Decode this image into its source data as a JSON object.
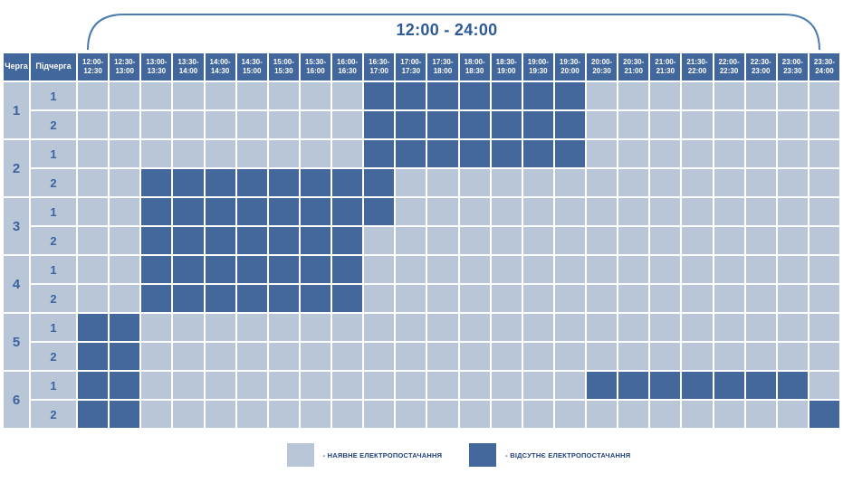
{
  "title": "12:00 - 24:00",
  "colors": {
    "on": "#b9c6d8",
    "off": "#44689b",
    "header_bg": "#42679c",
    "header_text": "#ffffff",
    "label_text": "#3a64a0",
    "title_text": "#2d5b97",
    "brace": "#4c7bb0",
    "legend_text": "#1f3f77"
  },
  "legend": [
    {
      "state": "on",
      "label": "- НАЯВНЕ ЕЛЕКТРОПОСТАЧАННЯ"
    },
    {
      "state": "off",
      "label": "- ВІДСУТНЄ ЕЛЕКТРОПОСТАЧАННЯ"
    }
  ],
  "chart_data": {
    "type": "heatmap",
    "title": "12:00 - 24:00",
    "corner_headers": [
      "Черга",
      "Підчерга"
    ],
    "time_slots": [
      "12:00-12:30",
      "12:30-13:00",
      "13:00-13:30",
      "13:30-14:00",
      "14:00-14:30",
      "14:30-15:00",
      "15:00-15:30",
      "15:30-16:00",
      "16:00-16:30",
      "16:30-17:00",
      "17:00-17:30",
      "17:30-18:00",
      "18:00-18:30",
      "18:30-19:00",
      "19:00-19:30",
      "19:30-20:00",
      "20:00-20:30",
      "20:30-21:00",
      "21:00-21:30",
      "21:30-22:00",
      "22:00-22:30",
      "22:30-23:00",
      "23:00-23:30",
      "23:30-24:00"
    ],
    "cell_states": {
      "on": "наявне електропостачання",
      "off": "відсутнє електропостачання"
    },
    "rows": [
      {
        "queue": "1",
        "subqueue": "1",
        "off": [
          9,
          10,
          11,
          12,
          13,
          14,
          15
        ]
      },
      {
        "queue": "1",
        "subqueue": "2",
        "off": [
          9,
          10,
          11,
          12,
          13,
          14,
          15
        ]
      },
      {
        "queue": "2",
        "subqueue": "1",
        "off": [
          9,
          10,
          11,
          12,
          13,
          14,
          15
        ]
      },
      {
        "queue": "2",
        "subqueue": "2",
        "off": [
          2,
          3,
          4,
          5,
          6,
          7,
          8,
          9
        ]
      },
      {
        "queue": "3",
        "subqueue": "1",
        "off": [
          2,
          3,
          4,
          5,
          6,
          7,
          8,
          9
        ]
      },
      {
        "queue": "3",
        "subqueue": "2",
        "off": [
          2,
          3,
          4,
          5,
          6,
          7,
          8
        ]
      },
      {
        "queue": "4",
        "subqueue": "1",
        "off": [
          2,
          3,
          4,
          5,
          6,
          7,
          8
        ]
      },
      {
        "queue": "4",
        "subqueue": "2",
        "off": [
          2,
          3,
          4,
          5,
          6,
          7,
          8
        ]
      },
      {
        "queue": "5",
        "subqueue": "1",
        "off": [
          0,
          1
        ]
      },
      {
        "queue": "5",
        "subqueue": "2",
        "off": [
          0,
          1
        ]
      },
      {
        "queue": "6",
        "subqueue": "1",
        "off": [
          0,
          1,
          16,
          17,
          18,
          19,
          20,
          21,
          22
        ]
      },
      {
        "queue": "6",
        "subqueue": "2",
        "off": [
          0,
          1,
          23
        ]
      }
    ]
  }
}
